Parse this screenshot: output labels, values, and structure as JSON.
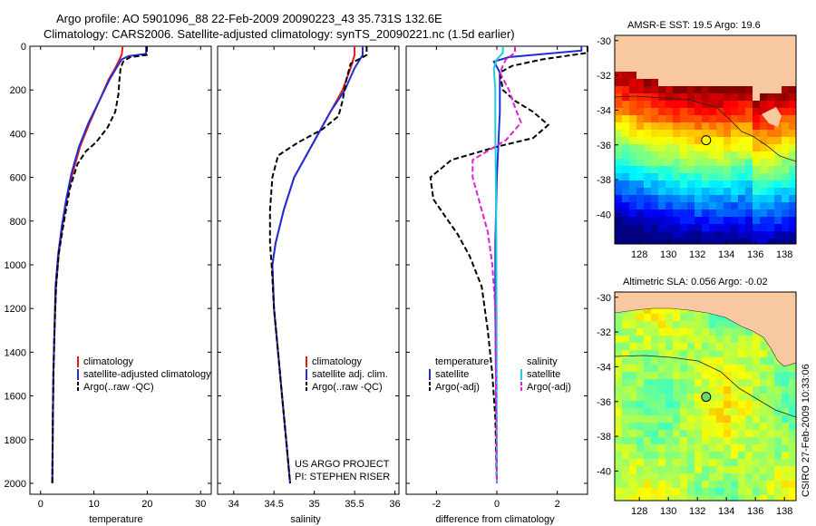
{
  "header": {
    "line1": "Argo profile: AO 5901096_88 22-Feb-2009 20090223_43 35.731S 132.6E",
    "line2": "Climatology: CARS2006. Satellite-adjusted climatology: synTS_20090221.nc (1.5d earlier)"
  },
  "credit": {
    "project": "US ARGO PROJECT",
    "pi": "PI: STEPHEN RISER",
    "stamp": "CSIRO 27-Feb-2009 10:33:06"
  },
  "colors": {
    "climatology": "#e41a1c",
    "satellite": "#1f2fd6",
    "argo": "#000000",
    "sat_diff": "#22ccdd",
    "argo_sal_diff": "#e020d0",
    "land": "#f8c8a0"
  },
  "chart_data": [
    {
      "type": "line",
      "id": "temperature",
      "xlabel": "temperature",
      "ylabel": "",
      "xlim": [
        -2,
        32
      ],
      "ylim": [
        0,
        2050
      ],
      "y_reversed": true,
      "xticks": [
        "0",
        "10",
        "20",
        "30"
      ],
      "yticks": [
        "0",
        "200",
        "400",
        "600",
        "800",
        "1000",
        "1200",
        "1400",
        "1600",
        "1800",
        "2000"
      ],
      "legend": {
        "placement": "bottom-right",
        "entries": [
          "climatology",
          "satellite-adjusted climatology",
          "Argo(..raw -QC)"
        ]
      },
      "series": [
        {
          "name": "climatology",
          "style": "solid",
          "color": "#e41a1c",
          "points": [
            [
              15.4,
              0
            ],
            [
              15.2,
              40
            ],
            [
              14.8,
              60
            ],
            [
              14.0,
              100
            ],
            [
              12.8,
              150
            ],
            [
              11.0,
              250
            ],
            [
              9.2,
              350
            ],
            [
              7.4,
              460
            ],
            [
              6.0,
              580
            ],
            [
              4.9,
              700
            ],
            [
              4.1,
              820
            ],
            [
              3.4,
              950
            ],
            [
              2.9,
              1100
            ],
            [
              2.6,
              1300
            ],
            [
              2.4,
              1500
            ],
            [
              2.3,
              1700
            ],
            [
              2.2,
              2000
            ]
          ]
        },
        {
          "name": "satellite-adjusted climatology",
          "style": "solid",
          "color": "#1f2fd6",
          "points": [
            [
              19.8,
              0
            ],
            [
              19.8,
              35
            ],
            [
              16.5,
              45
            ],
            [
              15.2,
              60
            ],
            [
              14.2,
              100
            ],
            [
              13.0,
              150
            ],
            [
              11.0,
              250
            ],
            [
              9.0,
              350
            ],
            [
              7.2,
              460
            ],
            [
              5.8,
              580
            ],
            [
              4.8,
              700
            ],
            [
              4.0,
              820
            ],
            [
              3.3,
              950
            ],
            [
              2.8,
              1100
            ],
            [
              2.6,
              1300
            ],
            [
              2.4,
              1500
            ],
            [
              2.3,
              1700
            ],
            [
              2.2,
              2000
            ]
          ]
        },
        {
          "name": "Argo(..raw -QC)",
          "style": "dash",
          "color": "#000000",
          "points": [
            [
              19.9,
              0
            ],
            [
              19.9,
              40
            ],
            [
              16.8,
              50
            ],
            [
              15.5,
              70
            ],
            [
              15.0,
              100
            ],
            [
              14.8,
              150
            ],
            [
              14.6,
              220
            ],
            [
              14.0,
              300
            ],
            [
              12.6,
              370
            ],
            [
              10.4,
              440
            ],
            [
              8.5,
              480
            ],
            [
              6.9,
              540
            ],
            [
              5.5,
              650
            ],
            [
              4.4,
              800
            ],
            [
              3.4,
              950
            ],
            [
              2.9,
              1100
            ],
            [
              2.6,
              1300
            ],
            [
              2.4,
              1500
            ],
            [
              2.3,
              1700
            ],
            [
              2.2,
              2000
            ]
          ]
        }
      ]
    },
    {
      "type": "line",
      "id": "salinity",
      "xlabel": "salinity",
      "ylabel": "",
      "xlim": [
        33.8,
        36.05
      ],
      "ylim": [
        0,
        2050
      ],
      "y_reversed": true,
      "xticks": [
        "34",
        "34.5",
        "35",
        "35.5",
        "36"
      ],
      "legend": {
        "placement": "bottom-right",
        "entries": [
          "climatology",
          "satellite adj. clim.",
          "Argo(..raw -QC)"
        ]
      },
      "series": [
        {
          "name": "climatology",
          "style": "solid",
          "color": "#e41a1c",
          "points": [
            [
              35.5,
              0
            ],
            [
              35.5,
              40
            ],
            [
              35.45,
              100
            ],
            [
              35.35,
              200
            ],
            [
              35.2,
              300
            ],
            [
              35.05,
              400
            ],
            [
              34.9,
              500
            ],
            [
              34.75,
              600
            ],
            [
              34.62,
              750
            ],
            [
              34.52,
              900
            ],
            [
              34.48,
              1000
            ],
            [
              34.5,
              1200
            ],
            [
              34.55,
              1400
            ],
            [
              34.6,
              1600
            ],
            [
              34.65,
              1800
            ],
            [
              34.7,
              2000
            ]
          ]
        },
        {
          "name": "satellite adj. clim.",
          "style": "solid",
          "color": "#1f2fd6",
          "points": [
            [
              35.6,
              0
            ],
            [
              35.6,
              40
            ],
            [
              35.5,
              100
            ],
            [
              35.38,
              200
            ],
            [
              35.2,
              300
            ],
            [
              35.05,
              400
            ],
            [
              34.9,
              500
            ],
            [
              34.75,
              600
            ],
            [
              34.62,
              750
            ],
            [
              34.52,
              900
            ],
            [
              34.48,
              1000
            ],
            [
              34.5,
              1200
            ],
            [
              34.55,
              1400
            ],
            [
              34.6,
              1600
            ],
            [
              34.65,
              1800
            ],
            [
              34.7,
              2000
            ]
          ]
        },
        {
          "name": "Argo(..raw -QC)",
          "style": "dash",
          "color": "#000000",
          "points": [
            [
              35.65,
              0
            ],
            [
              35.65,
              40
            ],
            [
              35.45,
              80
            ],
            [
              35.4,
              150
            ],
            [
              35.35,
              250
            ],
            [
              35.3,
              320
            ],
            [
              35.1,
              380
            ],
            [
              34.8,
              440
            ],
            [
              34.55,
              500
            ],
            [
              34.48,
              600
            ],
            [
              34.45,
              750
            ],
            [
              34.45,
              900
            ],
            [
              34.47,
              1000
            ],
            [
              34.5,
              1200
            ],
            [
              34.55,
              1400
            ],
            [
              34.6,
              1600
            ],
            [
              34.65,
              1800
            ],
            [
              34.7,
              2000
            ]
          ]
        }
      ]
    },
    {
      "type": "line",
      "id": "difference",
      "xlabel": "difference from climatology",
      "ylabel": "",
      "xlim": [
        -3,
        3
      ],
      "ylim": [
        0,
        2050
      ],
      "y_reversed": true,
      "xticks": [
        "-2",
        "0",
        "2"
      ],
      "legend": {
        "placement": "bottom",
        "columns": [
          {
            "heading": "temperature",
            "entries": [
              "satellite",
              "Argo(-adj)"
            ]
          },
          {
            "heading": "salinity",
            "entries": [
              "satellite",
              "Argo(-adj)"
            ]
          }
        ]
      },
      "series": [
        {
          "name": "temperature satellite",
          "style": "solid",
          "color": "#1f2fd6",
          "points": [
            [
              2.8,
              0
            ],
            [
              2.8,
              20
            ],
            [
              1.6,
              35
            ],
            [
              0.4,
              50
            ],
            [
              -0.1,
              70
            ],
            [
              0.1,
              120
            ],
            [
              0.1,
              300
            ],
            [
              0.0,
              600
            ],
            [
              -0.05,
              900
            ],
            [
              -0.05,
              1200
            ],
            [
              0.0,
              2000
            ]
          ]
        },
        {
          "name": "temperature Argo(-adj)",
          "style": "dash",
          "color": "#000000",
          "points": [
            [
              3.0,
              0
            ],
            [
              3.0,
              30
            ],
            [
              1.5,
              60
            ],
            [
              0.5,
              90
            ],
            [
              0.1,
              120
            ],
            [
              0.2,
              200
            ],
            [
              0.6,
              250
            ],
            [
              1.2,
              300
            ],
            [
              1.7,
              360
            ],
            [
              1.2,
              420
            ],
            [
              0.0,
              460
            ],
            [
              -1.5,
              520
            ],
            [
              -2.2,
              600
            ],
            [
              -2.1,
              700
            ],
            [
              -1.7,
              780
            ],
            [
              -1.3,
              860
            ],
            [
              -0.9,
              960
            ],
            [
              -0.5,
              1100
            ],
            [
              -0.3,
              1300
            ],
            [
              -0.15,
              1500
            ],
            [
              -0.05,
              1700
            ],
            [
              0.0,
              2000
            ]
          ]
        },
        {
          "name": "salinity satellite",
          "style": "solid",
          "color": "#22ccdd",
          "points": [
            [
              0.2,
              0
            ],
            [
              0.2,
              30
            ],
            [
              0.0,
              60
            ],
            [
              -0.1,
              100
            ],
            [
              -0.05,
              200
            ],
            [
              -0.05,
              400
            ],
            [
              -0.02,
              800
            ],
            [
              -0.01,
              1200
            ],
            [
              0.0,
              2000
            ]
          ]
        },
        {
          "name": "salinity Argo(-adj)",
          "style": "dash",
          "color": "#e020d0",
          "points": [
            [
              0.6,
              0
            ],
            [
              0.6,
              30
            ],
            [
              0.3,
              60
            ],
            [
              0.1,
              120
            ],
            [
              0.4,
              200
            ],
            [
              0.6,
              280
            ],
            [
              0.8,
              350
            ],
            [
              0.3,
              430
            ],
            [
              -0.8,
              520
            ],
            [
              -0.8,
              600
            ],
            [
              -0.6,
              700
            ],
            [
              -0.3,
              850
            ],
            [
              -0.15,
              1000
            ],
            [
              -0.05,
              1200
            ],
            [
              0.0,
              2000
            ]
          ]
        }
      ]
    },
    {
      "type": "heatmap",
      "id": "sst-map",
      "title": "AMSR-E SST: 19.5 Argo: 19.6",
      "xlim": [
        126.3,
        138.8
      ],
      "ylim": [
        -41.7,
        -29.7
      ],
      "xticks": [
        "128",
        "130",
        "132",
        "134",
        "136",
        "138"
      ],
      "yticks": [
        "-30",
        "-32",
        "-34",
        "-36",
        "-38",
        "-40"
      ],
      "float_position": [
        132.6,
        -35.731
      ],
      "colormap": "jet",
      "field": "sea surface temperature, warm (dark red) near the coast at -32, cooling to cyan at -41"
    },
    {
      "type": "heatmap",
      "id": "sla-map",
      "title": "Altimetric SLA: 0.056 Argo: -0.02",
      "xlim": [
        126.3,
        138.8
      ],
      "ylim": [
        -41.7,
        -29.7
      ],
      "xticks": [
        "128",
        "130",
        "132",
        "134",
        "136",
        "138"
      ],
      "yticks": [
        "-30",
        "-32",
        "-34",
        "-36",
        "-38",
        "-40"
      ],
      "float_position": [
        132.6,
        -35.731
      ],
      "colormap": "jet",
      "field": "sea level anomaly, mostly green with yellow patches"
    }
  ]
}
